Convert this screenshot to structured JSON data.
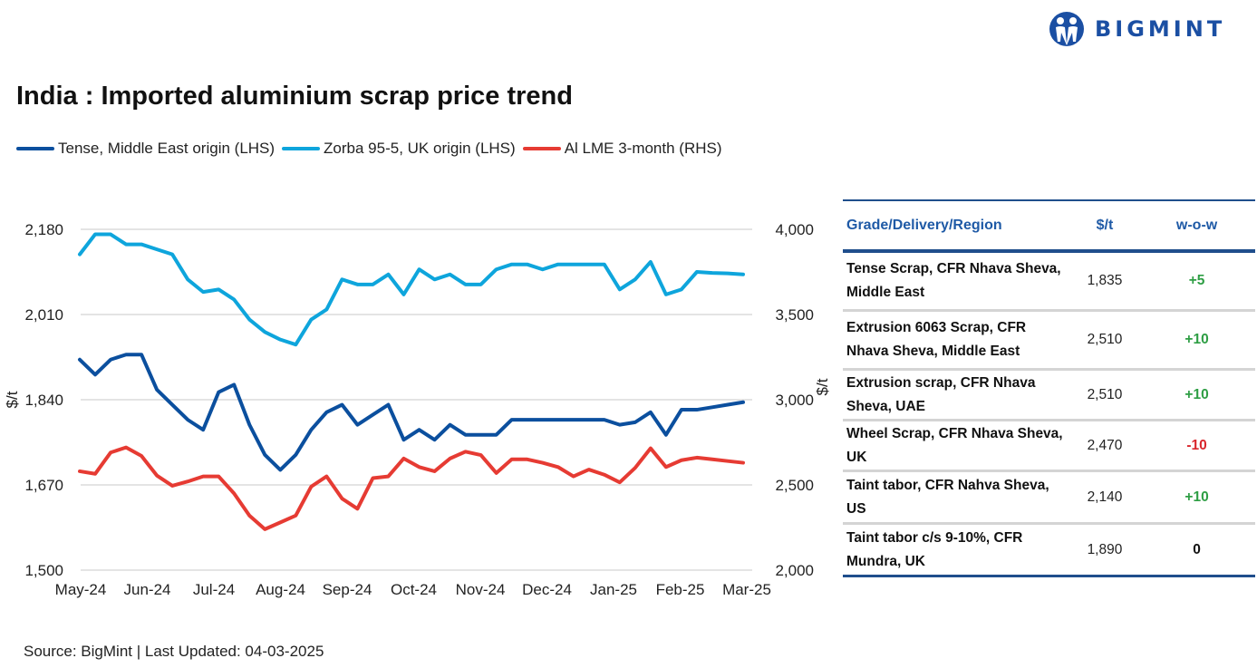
{
  "brand": {
    "name": "BIGMINT",
    "color": "#1b4fa3"
  },
  "title": "India : Imported aluminium scrap price trend",
  "source": "Source: BigMint | Last Updated: 04-03-2025",
  "chart_data": {
    "type": "line",
    "title": "India : Imported aluminium scrap price trend",
    "x_tick_labels": [
      "May-24",
      "Jun-24",
      "Jul-24",
      "Aug-24",
      "Sep-24",
      "Oct-24",
      "Nov-24",
      "Dec-24",
      "Jan-25",
      "Feb-25",
      "Mar-25"
    ],
    "x_frequency": "weekly",
    "ylabel_left": "$/t",
    "ylabel_right": "$/t",
    "ylim_left": [
      1500,
      2180
    ],
    "yticks_left": [
      "1,500",
      "1,670",
      "1,840",
      "2,010",
      "2,180"
    ],
    "ylim_right": [
      2000,
      4000
    ],
    "yticks_right": [
      "2,000",
      "2,500",
      "3,000",
      "3,500",
      "4,000"
    ],
    "grid": true,
    "legend": "top",
    "series": [
      {
        "name": "Tense, Middle East origin (LHS)",
        "axis": "left",
        "color": "#0b4f9e",
        "values": [
          1920,
          1890,
          1920,
          1930,
          1930,
          1860,
          1830,
          1800,
          1780,
          1855,
          1870,
          1790,
          1730,
          1700,
          1730,
          1780,
          1815,
          1830,
          1790,
          1810,
          1830,
          1760,
          1780,
          1760,
          1790,
          1770,
          1770,
          1770,
          1800,
          1800,
          1800,
          1800,
          1800,
          1800,
          1800,
          1790,
          1795,
          1815,
          1770,
          1820,
          1820,
          1825,
          1830,
          1835
        ]
      },
      {
        "name": "Zorba 95-5, UK origin (LHS)",
        "axis": "left",
        "color": "#0ea5dc",
        "values": [
          2130,
          2170,
          2170,
          2150,
          2150,
          2140,
          2130,
          2080,
          2055,
          2060,
          2040,
          2000,
          1975,
          1960,
          1950,
          2000,
          2020,
          2080,
          2070,
          2070,
          2090,
          2050,
          2100,
          2080,
          2090,
          2070,
          2070,
          2100,
          2110,
          2110,
          2100,
          2110,
          2110,
          2110,
          2110,
          2060,
          2080,
          2115,
          2050,
          2060,
          2095,
          2093,
          2092,
          2090
        ]
      },
      {
        "name": "Al LME 3-month (RHS)",
        "axis": "right",
        "color": "#e63b33",
        "values": [
          2580,
          2565,
          2690,
          2720,
          2670,
          2555,
          2495,
          2520,
          2550,
          2550,
          2450,
          2320,
          2240,
          2280,
          2320,
          2490,
          2550,
          2420,
          2360,
          2540,
          2550,
          2655,
          2605,
          2580,
          2655,
          2695,
          2675,
          2570,
          2650,
          2650,
          2630,
          2605,
          2550,
          2590,
          2560,
          2515,
          2600,
          2715,
          2605,
          2645,
          2660,
          2650,
          2640,
          2630
        ]
      }
    ]
  },
  "table": {
    "headers": [
      "Grade/Delivery/Region",
      "$/t",
      "w-o-w"
    ],
    "rows": [
      {
        "grade": "Tense Scrap, CFR Nhava Sheva, Middle East",
        "price": "1,835",
        "wow": "+5",
        "dir": "up"
      },
      {
        "grade": "Extrusion 6063 Scrap, CFR Nhava Sheva, Middle East",
        "price": "2,510",
        "wow": "+10",
        "dir": "up"
      },
      {
        "grade": "Extrusion scrap, CFR Nhava Sheva, UAE",
        "price": "2,510",
        "wow": "+10",
        "dir": "up"
      },
      {
        "grade": "Wheel Scrap, CFR Nhava Sheva, UK",
        "price": "2,470",
        "wow": "-10",
        "dir": "down"
      },
      {
        "grade": "Taint tabor, CFR Nahva Sheva, US",
        "price": "2,140",
        "wow": "+10",
        "dir": "up"
      },
      {
        "grade": "Taint tabor c/s 9-10%, CFR Mundra, UK",
        "price": "1,890",
        "wow": "0",
        "dir": "flat"
      }
    ],
    "colors": {
      "up": "#2e9e44",
      "down": "#d9262c",
      "flat": "#111111"
    }
  }
}
